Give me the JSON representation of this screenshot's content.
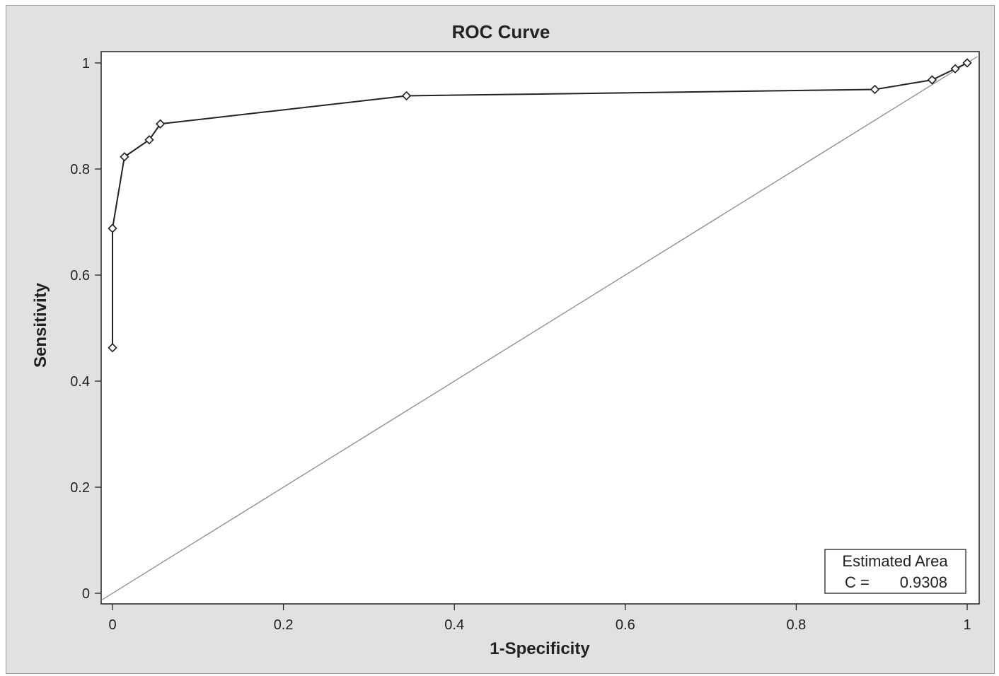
{
  "chart_data": {
    "type": "line",
    "title": "ROC Curve",
    "xlabel": "1-Specificity",
    "ylabel": "Sensitivity",
    "xlim": [
      0,
      1
    ],
    "ylim": [
      0,
      1
    ],
    "x_ticks": [
      0,
      0.2,
      0.4,
      0.6,
      0.8,
      1
    ],
    "y_ticks": [
      0,
      0.2,
      0.4,
      0.6,
      0.8,
      1
    ],
    "x_tick_labels": [
      "0",
      "0.2",
      "0.4",
      "0.6",
      "0.8",
      "1"
    ],
    "y_tick_labels": [
      "0",
      "0.2",
      "0.4",
      "0.6",
      "0.8",
      "1"
    ],
    "grid": false,
    "series": [
      {
        "marker": "diamond",
        "color": "#222222",
        "x": [
          0.0,
          0.0,
          0.014,
          0.043,
          0.056,
          0.344,
          0.892,
          0.959,
          0.986,
          1.0
        ],
        "y": [
          0.463,
          0.688,
          0.823,
          0.855,
          0.885,
          0.938,
          0.95,
          0.968,
          0.989,
          1.0
        ]
      }
    ],
    "reference_line": {
      "x": [
        0,
        1
      ],
      "y": [
        0,
        1
      ],
      "color": "#8a8a8a"
    },
    "legend": {
      "position": "bottom-right",
      "line1": "Estimated Area",
      "label": "C =",
      "value": "0.9308"
    }
  }
}
